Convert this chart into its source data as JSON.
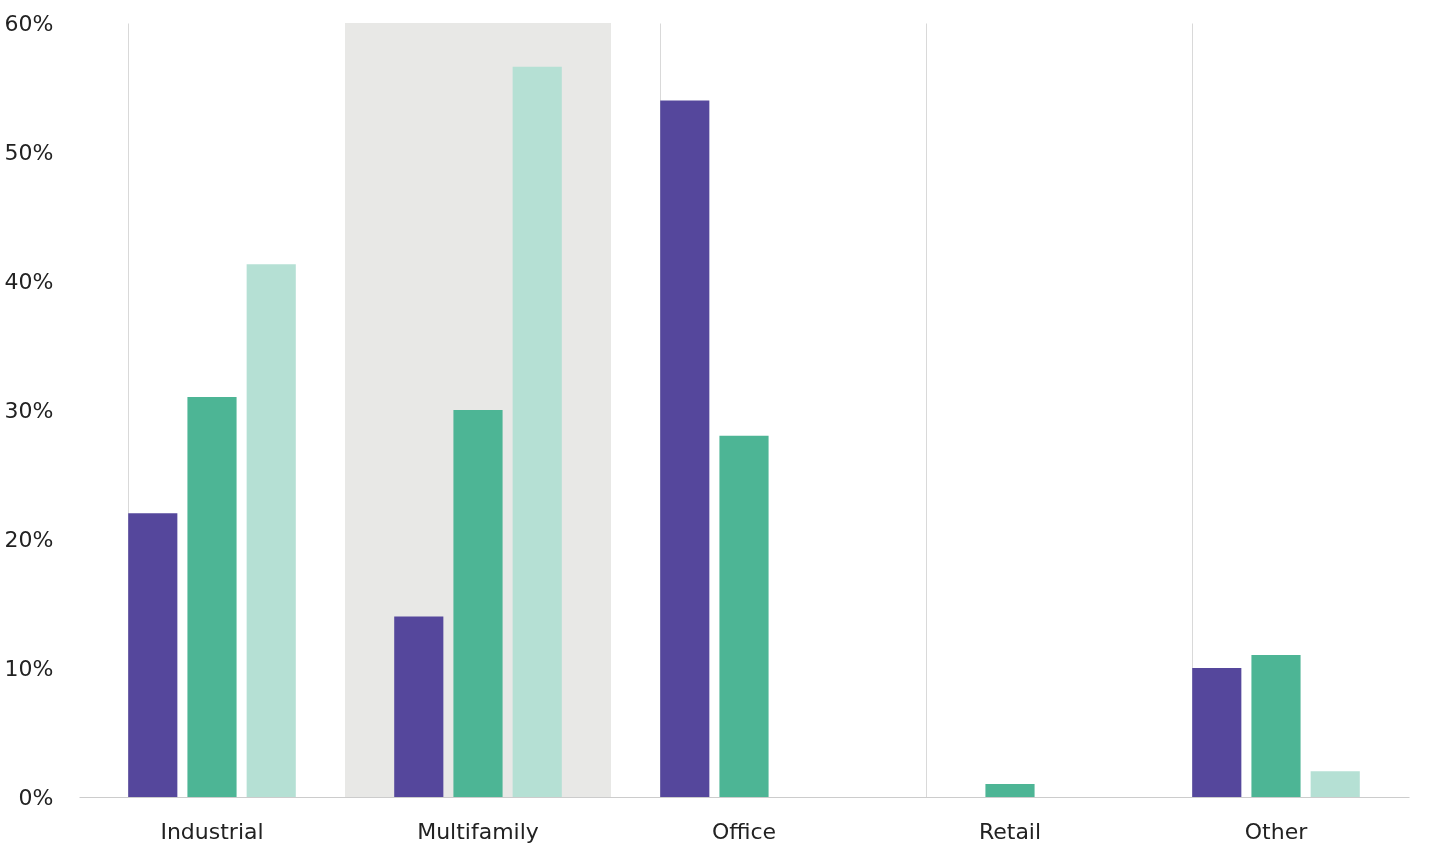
{
  "chart_data": {
    "type": "bar",
    "categories": [
      "Industrial",
      "Multifamily",
      "Office",
      "Retail",
      "Other"
    ],
    "series": [
      {
        "color": "#55479c",
        "values": [
          22,
          14,
          54,
          null,
          10
        ]
      },
      {
        "color": "#4db595",
        "values": [
          31,
          30,
          28,
          1,
          11
        ]
      },
      {
        "color": "#b5e0d4",
        "values": [
          41.3,
          56.6,
          null,
          null,
          2
        ]
      }
    ],
    "ylim": [
      0,
      60
    ],
    "yticks": [
      {
        "value": 0,
        "label": "0%"
      },
      {
        "value": 10,
        "label": "10%"
      },
      {
        "value": 20,
        "label": "20%"
      },
      {
        "value": 30,
        "label": "30%"
      },
      {
        "value": 40,
        "label": "40%"
      },
      {
        "value": 50,
        "label": "50%"
      },
      {
        "value": 60,
        "label": "60%"
      }
    ],
    "grid": "x",
    "legend": false,
    "bands": [
      {
        "axis": "x",
        "from": "Multifamily",
        "to": "Multifamily",
        "color": "#e8e8e6"
      }
    ]
  }
}
